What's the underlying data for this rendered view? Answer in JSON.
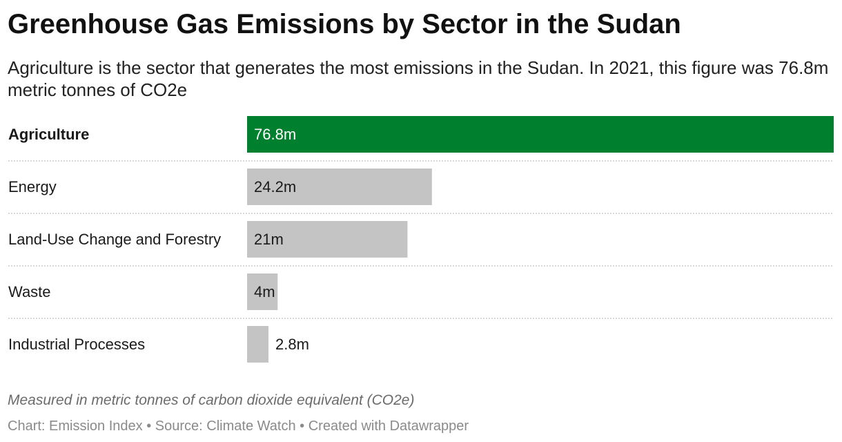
{
  "title": "Greenhouse Gas Emissions by Sector in the Sudan",
  "subtitle": "Agriculture is the sector that generates the most emissions in the Sudan. In 2021, this figure was 76.8m metric tonnes of CO2e",
  "note": "Measured in metric tonnes of carbon dioxide equivalent (CO2e)",
  "footer": {
    "chart_label": "Chart:",
    "chart_source": "Emission Index",
    "source_label": "Source:",
    "source_name": "Climate Watch",
    "created_with": "Created with Datawrapper",
    "separator": "•"
  },
  "colors": {
    "highlight": "#00802e",
    "default_bar": "#c4c4c4",
    "divider": "#cccccc"
  },
  "chart_data": {
    "type": "bar",
    "orientation": "horizontal",
    "categories": [
      "Agriculture",
      "Energy",
      "Land-Use Change and Forestry",
      "Waste",
      "Industrial Processes"
    ],
    "values": [
      76.8,
      24.2,
      21,
      4,
      2.8
    ],
    "value_labels": [
      "76.8m",
      "24.2m",
      "21m",
      "4m",
      "2.8m"
    ],
    "highlighted_category": "Agriculture",
    "xlim": [
      0,
      76.8
    ],
    "grid": false,
    "legend": "none",
    "title": "Greenhouse Gas Emissions by Sector in the Sudan",
    "xlabel": "",
    "ylabel": ""
  }
}
